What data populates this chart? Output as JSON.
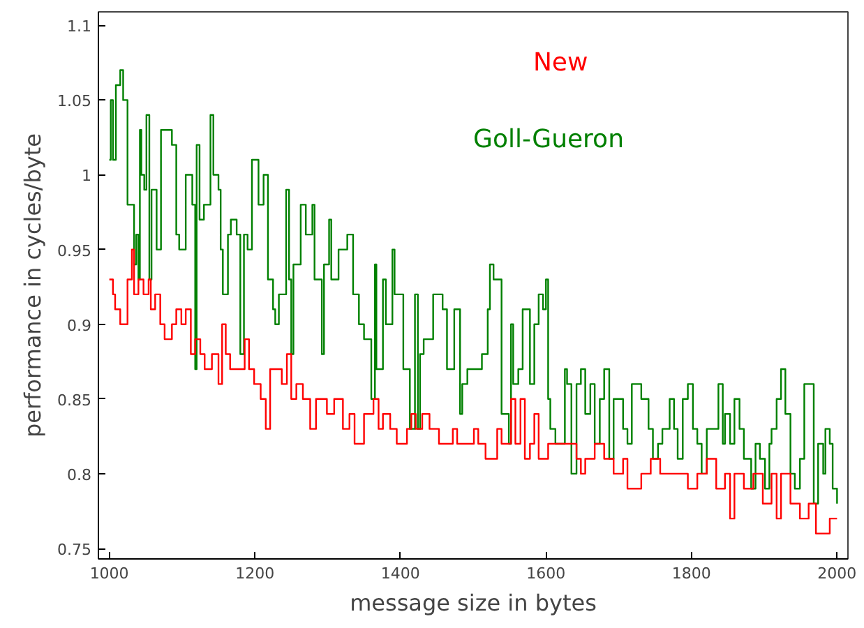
{
  "chart_data": {
    "type": "step",
    "xlabel": "message size in bytes",
    "ylabel": "performance in cycles/byte",
    "xlim": [
      985,
      2015
    ],
    "ylim": [
      0.743,
      1.109
    ],
    "xticks": [
      1000,
      1200,
      1400,
      1600,
      1800,
      2000
    ],
    "yticks": [
      0.75,
      0.8,
      0.85,
      0.9,
      0.95,
      1,
      1.05,
      1.1
    ],
    "grid": false,
    "legend": false,
    "series": [
      {
        "name": "Goll-Gueron",
        "color": "#008000",
        "x": [
          1000,
          1002,
          1005,
          1009,
          1015,
          1019,
          1025,
          1031,
          1034,
          1037,
          1040,
          1042,
          1044,
          1048,
          1051,
          1055,
          1058,
          1065,
          1071,
          1075,
          1086,
          1092,
          1096,
          1103,
          1105,
          1114,
          1118,
          1120,
          1124,
          1130,
          1139,
          1143,
          1150,
          1153,
          1156,
          1163,
          1167,
          1175,
          1180,
          1185,
          1190,
          1196,
          1200,
          1205,
          1212,
          1218,
          1225,
          1228,
          1233,
          1243,
          1247,
          1250,
          1253,
          1263,
          1270,
          1279,
          1282,
          1292,
          1295,
          1302,
          1305,
          1315,
          1322,
          1327,
          1335,
          1343,
          1350,
          1360,
          1365,
          1367,
          1376,
          1380,
          1389,
          1392,
          1397,
          1404,
          1413,
          1420,
          1424,
          1427,
          1432,
          1445,
          1458,
          1464,
          1474,
          1482,
          1485,
          1492,
          1507,
          1512,
          1520,
          1523,
          1528,
          1534,
          1539,
          1549,
          1552,
          1555,
          1562,
          1568,
          1578,
          1584,
          1590,
          1596,
          1600,
          1603,
          1606,
          1613,
          1619,
          1626,
          1629,
          1635,
          1642,
          1648,
          1654,
          1661,
          1667,
          1674,
          1680,
          1687,
          1693,
          1706,
          1712,
          1718,
          1725,
          1728,
          1731,
          1741,
          1747,
          1754,
          1760,
          1770,
          1776,
          1781,
          1788,
          1795,
          1802,
          1808,
          1814,
          1821,
          1827,
          1837,
          1843,
          1846,
          1853,
          1859,
          1866,
          1872,
          1882,
          1888,
          1894,
          1901,
          1907,
          1910,
          1917,
          1923,
          1929,
          1936,
          1942,
          1949,
          1955,
          1968,
          1974,
          1981,
          1984,
          1990,
          1994,
          2000
        ],
        "values": [
          1.01,
          1.05,
          1.01,
          1.06,
          1.07,
          1.05,
          0.98,
          0.98,
          0.94,
          0.96,
          0.93,
          1.03,
          1.0,
          0.99,
          1.04,
          0.93,
          0.99,
          0.95,
          1.03,
          1.03,
          1.02,
          0.96,
          0.95,
          0.95,
          1.0,
          0.98,
          0.87,
          1.02,
          0.97,
          0.98,
          1.04,
          1.0,
          0.99,
          0.95,
          0.92,
          0.96,
          0.97,
          0.96,
          0.88,
          0.96,
          0.95,
          1.01,
          1.01,
          0.98,
          1.0,
          0.93,
          0.91,
          0.9,
          0.92,
          0.99,
          0.93,
          0.88,
          0.94,
          0.98,
          0.96,
          0.98,
          0.93,
          0.88,
          0.94,
          0.97,
          0.93,
          0.95,
          0.95,
          0.96,
          0.92,
          0.9,
          0.89,
          0.85,
          0.94,
          0.87,
          0.93,
          0.9,
          0.95,
          0.92,
          0.92,
          0.87,
          0.83,
          0.92,
          0.83,
          0.88,
          0.89,
          0.92,
          0.91,
          0.87,
          0.91,
          0.84,
          0.86,
          0.87,
          0.87,
          0.88,
          0.91,
          0.94,
          0.93,
          0.93,
          0.84,
          0.82,
          0.9,
          0.86,
          0.87,
          0.91,
          0.86,
          0.9,
          0.92,
          0.91,
          0.93,
          0.85,
          0.83,
          0.82,
          0.82,
          0.87,
          0.86,
          0.8,
          0.86,
          0.87,
          0.84,
          0.86,
          0.82,
          0.85,
          0.87,
          0.81,
          0.85,
          0.83,
          0.82,
          0.86,
          0.86,
          0.86,
          0.85,
          0.83,
          0.81,
          0.82,
          0.83,
          0.85,
          0.83,
          0.81,
          0.85,
          0.86,
          0.83,
          0.82,
          0.8,
          0.83,
          0.83,
          0.86,
          0.82,
          0.84,
          0.82,
          0.85,
          0.83,
          0.81,
          0.79,
          0.82,
          0.81,
          0.79,
          0.82,
          0.83,
          0.85,
          0.87,
          0.84,
          0.8,
          0.79,
          0.81,
          0.86,
          0.78,
          0.82,
          0.8,
          0.83,
          0.82,
          0.79,
          0.78
        ]
      },
      {
        "name": "New",
        "color": "#ff0000",
        "x": [
          1000,
          1005,
          1008,
          1015,
          1021,
          1025,
          1031,
          1034,
          1040,
          1047,
          1054,
          1057,
          1063,
          1070,
          1076,
          1086,
          1092,
          1099,
          1105,
          1112,
          1118,
          1125,
          1131,
          1141,
          1150,
          1155,
          1160,
          1166,
          1176,
          1186,
          1192,
          1199,
          1208,
          1215,
          1221,
          1231,
          1237,
          1244,
          1250,
          1257,
          1266,
          1276,
          1284,
          1290,
          1299,
          1309,
          1321,
          1330,
          1337,
          1350,
          1357,
          1363,
          1370,
          1376,
          1386,
          1395,
          1404,
          1409,
          1415,
          1421,
          1430,
          1440,
          1453,
          1466,
          1472,
          1478,
          1485,
          1494,
          1501,
          1507,
          1517,
          1526,
          1533,
          1539,
          1546,
          1552,
          1558,
          1565,
          1571,
          1578,
          1584,
          1590,
          1603,
          1616,
          1629,
          1642,
          1648,
          1654,
          1667,
          1680,
          1693,
          1706,
          1712,
          1718,
          1731,
          1744,
          1757,
          1770,
          1781,
          1795,
          1808,
          1821,
          1834,
          1846,
          1853,
          1859,
          1872,
          1885,
          1898,
          1910,
          1917,
          1923,
          1936,
          1949,
          1961,
          1971,
          1981,
          1990,
          2000
        ],
        "values": [
          0.93,
          0.92,
          0.91,
          0.9,
          0.9,
          0.93,
          0.95,
          0.92,
          0.93,
          0.92,
          0.93,
          0.91,
          0.92,
          0.9,
          0.89,
          0.9,
          0.91,
          0.9,
          0.91,
          0.88,
          0.89,
          0.88,
          0.87,
          0.88,
          0.86,
          0.9,
          0.88,
          0.87,
          0.87,
          0.89,
          0.87,
          0.86,
          0.85,
          0.83,
          0.87,
          0.87,
          0.86,
          0.88,
          0.85,
          0.86,
          0.85,
          0.83,
          0.85,
          0.85,
          0.84,
          0.85,
          0.83,
          0.84,
          0.82,
          0.84,
          0.84,
          0.85,
          0.83,
          0.84,
          0.83,
          0.82,
          0.82,
          0.83,
          0.84,
          0.83,
          0.84,
          0.83,
          0.82,
          0.82,
          0.83,
          0.82,
          0.82,
          0.82,
          0.83,
          0.82,
          0.81,
          0.81,
          0.83,
          0.82,
          0.82,
          0.85,
          0.82,
          0.85,
          0.81,
          0.82,
          0.84,
          0.81,
          0.82,
          0.82,
          0.82,
          0.81,
          0.8,
          0.81,
          0.82,
          0.81,
          0.8,
          0.81,
          0.79,
          0.79,
          0.8,
          0.81,
          0.8,
          0.8,
          0.8,
          0.79,
          0.8,
          0.81,
          0.79,
          0.8,
          0.77,
          0.8,
          0.79,
          0.8,
          0.78,
          0.8,
          0.77,
          0.8,
          0.78,
          0.77,
          0.78,
          0.76,
          0.76,
          0.77,
          0.77
        ]
      }
    ]
  }
}
